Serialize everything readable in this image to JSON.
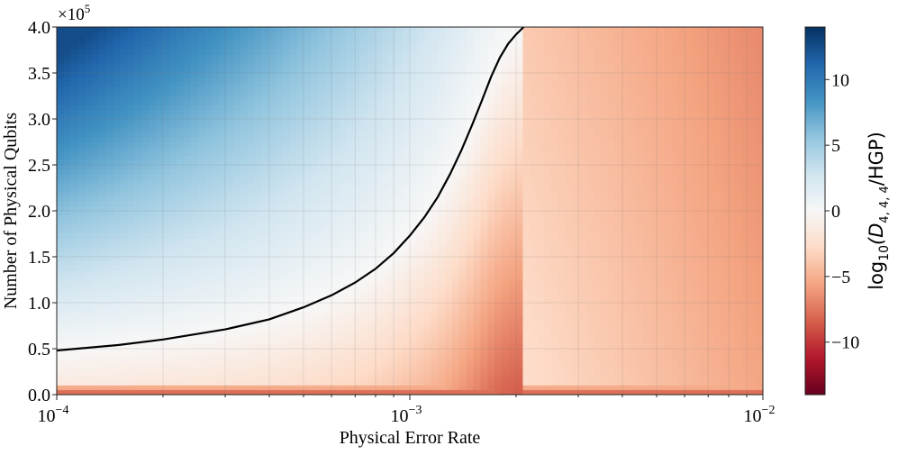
{
  "chart_data": {
    "type": "heatmap",
    "title": "",
    "xlabel": "Physical Error Rate",
    "ylabel": "Number of Physical Qubits",
    "x_scale": "log",
    "xlim": [
      0.0001,
      0.01
    ],
    "ylim": [
      0,
      400000
    ],
    "y_offset_text_base": "×10",
    "y_offset_text_exp": "5",
    "x_ticks": [
      {
        "value": 0.0001,
        "base": "10",
        "exp": "−4"
      },
      {
        "value": 0.001,
        "base": "10",
        "exp": "−3"
      },
      {
        "value": 0.01,
        "base": "10",
        "exp": "−2"
      }
    ],
    "y_ticks": [
      {
        "value": 0,
        "label": "0.0"
      },
      {
        "value": 50000,
        "label": "0.5"
      },
      {
        "value": 100000,
        "label": "1.0"
      },
      {
        "value": 150000,
        "label": "1.5"
      },
      {
        "value": 200000,
        "label": "2.0"
      },
      {
        "value": 250000,
        "label": "2.5"
      },
      {
        "value": 300000,
        "label": "3.0"
      },
      {
        "value": 350000,
        "label": "3.5"
      },
      {
        "value": 400000,
        "label": "4.0"
      }
    ],
    "grid": true,
    "colormap": "RdBu",
    "colorbar": {
      "label_prefix": "log",
      "label_sub": "10",
      "label_mid": "(D",
      "label_sub2": "4, 4, 4",
      "label_suffix": "/HGP)",
      "range": [
        -14,
        14
      ],
      "ticks": [
        {
          "value": 10,
          "label": "10"
        },
        {
          "value": 5,
          "label": "5"
        },
        {
          "value": 0,
          "label": "0"
        },
        {
          "value": -5,
          "label": "−5"
        },
        {
          "value": -10,
          "label": "−10"
        }
      ]
    },
    "value_field_samples": [
      {
        "x": 0.0001,
        "y": 400000,
        "z": 12
      },
      {
        "x": 0.0001,
        "y": 200000,
        "z": 6
      },
      {
        "x": 0.0001,
        "y": 48000,
        "z": 0
      },
      {
        "x": 0.0001,
        "y": 5000,
        "z": -4
      },
      {
        "x": 0.01,
        "y": 400000,
        "z": -6
      },
      {
        "x": 0.01,
        "y": 50000,
        "z": -4
      }
    ],
    "contour_zero": {
      "x": [
        0.0001,
        0.00015,
        0.0002,
        0.0003,
        0.0004,
        0.0005,
        0.0006,
        0.0007,
        0.0008,
        0.0009,
        0.001,
        0.0011,
        0.0012,
        0.0013,
        0.0014,
        0.0015,
        0.0016,
        0.0017,
        0.0018,
        0.0019,
        0.002,
        0.00205,
        0.0021
      ],
      "y": [
        48000,
        54000,
        60000,
        71000,
        82000,
        95000,
        108000,
        122000,
        137000,
        154000,
        173000,
        193000,
        215000,
        240000,
        266000,
        293000,
        320000,
        346000,
        367000,
        382000,
        392000,
        396000,
        400000
      ]
    }
  }
}
